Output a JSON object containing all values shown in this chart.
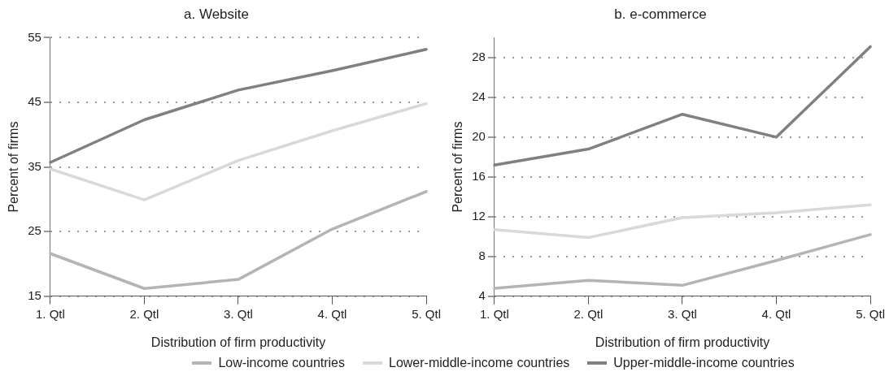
{
  "chart_data": [
    {
      "type": "line",
      "title": "a. Website",
      "xlabel": "Distribution of firm productivity",
      "ylabel": "Percent of firms",
      "categories": [
        "1. Qtl",
        "2. Qtl",
        "3. Qtl",
        "4. Qtl",
        "5. Qtl"
      ],
      "series": [
        {
          "name": "Low-income countries",
          "color": "#b4b4b4",
          "values": [
            21.6,
            16.2,
            17.6,
            25.4,
            31.2
          ]
        },
        {
          "name": "Lower-middle-income countries",
          "color": "#d9d9d9",
          "values": [
            34.7,
            29.9,
            36.0,
            40.6,
            44.8
          ]
        },
        {
          "name": "Upper-middle-income countries",
          "color": "#808080",
          "values": [
            35.7,
            42.3,
            46.9,
            49.9,
            53.2
          ]
        }
      ],
      "ylim": [
        15,
        55
      ],
      "yticks": [
        15,
        25,
        35,
        45,
        55
      ],
      "grid": "y",
      "legend": "bottom",
      "marker": "none",
      "line_style": "solid"
    },
    {
      "type": "line",
      "title": "b. e-commerce",
      "xlabel": "Distribution of firm productivity",
      "ylabel": "Percent of firms",
      "categories": [
        "1. Qtl",
        "2. Qtl",
        "3. Qtl",
        "4. Qtl",
        "5. Qtl"
      ],
      "series": [
        {
          "color": "#b4b4b4",
          "values": [
            4.8,
            5.6,
            5.1,
            7.6,
            10.2
          ]
        },
        {
          "color": "#d9d9d9",
          "values": [
            10.7,
            9.9,
            11.9,
            12.4,
            13.2
          ]
        },
        {
          "color": "#808080",
          "values": [
            17.2,
            18.8,
            22.3,
            20.0,
            29.1
          ]
        }
      ],
      "ylim": [
        4,
        30
      ],
      "yticks": [
        4,
        8,
        12,
        16,
        20,
        24,
        28
      ],
      "grid": "y",
      "marker": "none",
      "line_style": "solid"
    }
  ]
}
